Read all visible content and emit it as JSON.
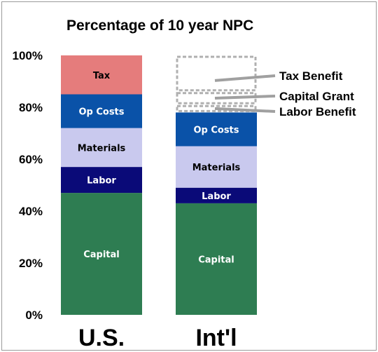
{
  "chart_data": {
    "type": "bar",
    "stacked": true,
    "title": "Percentage of 10 year NPC",
    "xlabel": "",
    "ylabel": "",
    "ylim": [
      0,
      100
    ],
    "yticks": [
      "0%",
      "20%",
      "40%",
      "60%",
      "80%",
      "100%"
    ],
    "categories": [
      "U.S.",
      "Int'l"
    ],
    "grid": false,
    "bars": [
      {
        "category": "U.S.",
        "segments": [
          {
            "name": "Capital",
            "value": 47,
            "color": "#2e7d52",
            "label": "Capital",
            "style": "filled"
          },
          {
            "name": "Labor",
            "value": 10,
            "color": "#0a0a78",
            "label": "Labor",
            "style": "filled"
          },
          {
            "name": "Materials",
            "value": 15,
            "color": "#c9c9ee",
            "label": "Materials",
            "style": "filled"
          },
          {
            "name": "Op Costs",
            "value": 13,
            "color": "#0a52a8",
            "label": "Op Costs",
            "style": "filled"
          },
          {
            "name": "Tax",
            "value": 15,
            "color": "#e57c7c",
            "label": "Tax",
            "style": "filled"
          }
        ]
      },
      {
        "category": "Int'l",
        "segments": [
          {
            "name": "Capital",
            "value": 43,
            "color": "#2e7d52",
            "label": "Capital",
            "style": "filled"
          },
          {
            "name": "Labor",
            "value": 6,
            "color": "#0a0a78",
            "label": "Labor",
            "style": "filled"
          },
          {
            "name": "Materials",
            "value": 16,
            "color": "#c9c9ee",
            "label": "Materials",
            "style": "filled"
          },
          {
            "name": "Op Costs",
            "value": 13,
            "color": "#0a52a8",
            "label": "Op Costs",
            "style": "filled"
          },
          {
            "name": "Labor Benefit",
            "value": 3,
            "color": "#b0b0b0",
            "label": "",
            "style": "dashed"
          },
          {
            "name": "Capital Grant",
            "value": 5,
            "color": "#b0b0b0",
            "label": "",
            "style": "dashed"
          },
          {
            "name": "Tax Benefit",
            "value": 14,
            "color": "#b0b0b0",
            "label": "",
            "style": "dashed"
          }
        ]
      }
    ],
    "annotations": [
      "Tax Benefit",
      "Capital Grant",
      "Labor Benefit"
    ]
  }
}
